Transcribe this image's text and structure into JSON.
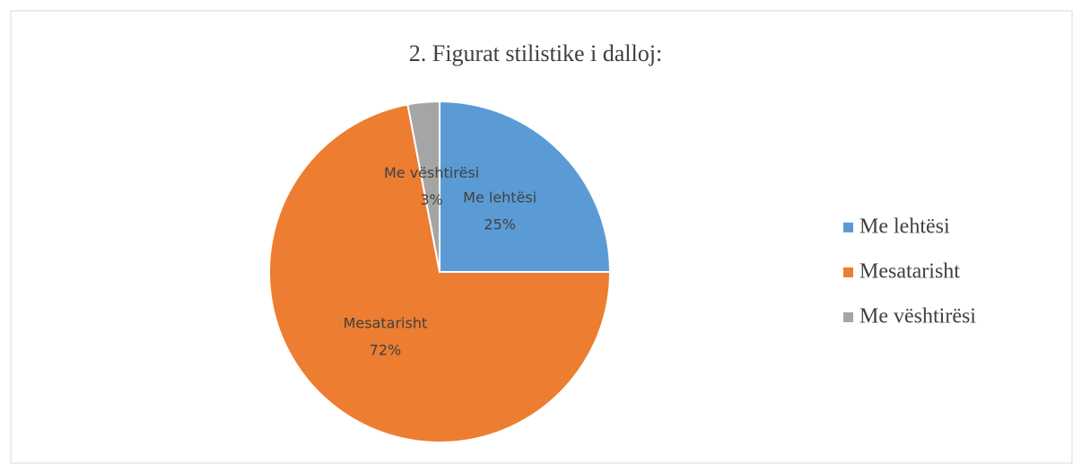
{
  "chart_data": {
    "type": "pie",
    "title": "2. Figurat stilistike i dalloj:",
    "categories": [
      "Me lehtësi",
      "Mesatarisht",
      "Me vështirësi"
    ],
    "values": [
      25,
      72,
      3
    ],
    "value_labels": [
      "25%",
      "72%",
      "3%"
    ],
    "colors": [
      "#5b9bd5",
      "#ed7d31",
      "#a5a5a5"
    ],
    "legend": "right"
  }
}
